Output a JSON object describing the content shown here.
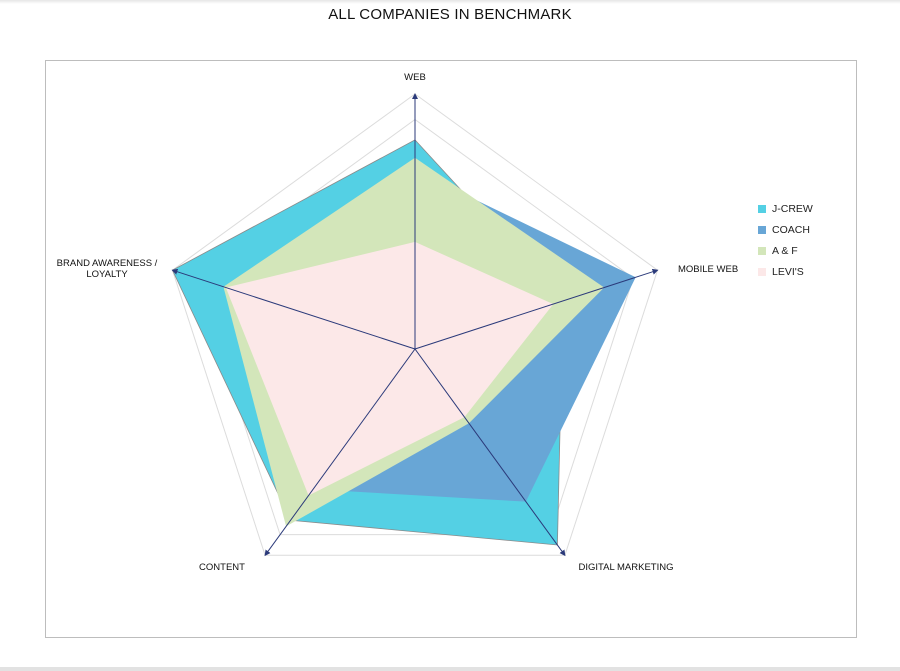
{
  "chart_data": {
    "type": "radar",
    "title": "ALL COMPANIES IN BENCHMARK",
    "axes": [
      "WEB",
      "MOBILE WEB",
      "DIGITAL MARKETING",
      "CONTENT",
      "BRAND AWARENESS  /\nLOYALTY"
    ],
    "range": [
      0,
      10
    ],
    "grid_levels": [
      9,
      10
    ],
    "legend_position": "right",
    "series": [
      {
        "name": "J-CREW",
        "color": "#54D0E4",
        "values": [
          8.2,
          6.1,
          9.5,
          8.3,
          10
        ]
      },
      {
        "name": "COACH",
        "color": "#68A6D6",
        "values": [
          7.0,
          9.1,
          7.4,
          6.8,
          7.5
        ]
      },
      {
        "name": "A & F",
        "color": "#D3E6BA",
        "values": [
          7.5,
          7.8,
          3.6,
          8.6,
          7.9
        ]
      },
      {
        "name": "LEVI'S",
        "color": "#FCE8E8",
        "values": [
          4.2,
          5.7,
          3.3,
          7.1,
          7.8
        ]
      }
    ],
    "axis_color": "#2B3A7A",
    "grid_color": "#dcdcdc"
  }
}
